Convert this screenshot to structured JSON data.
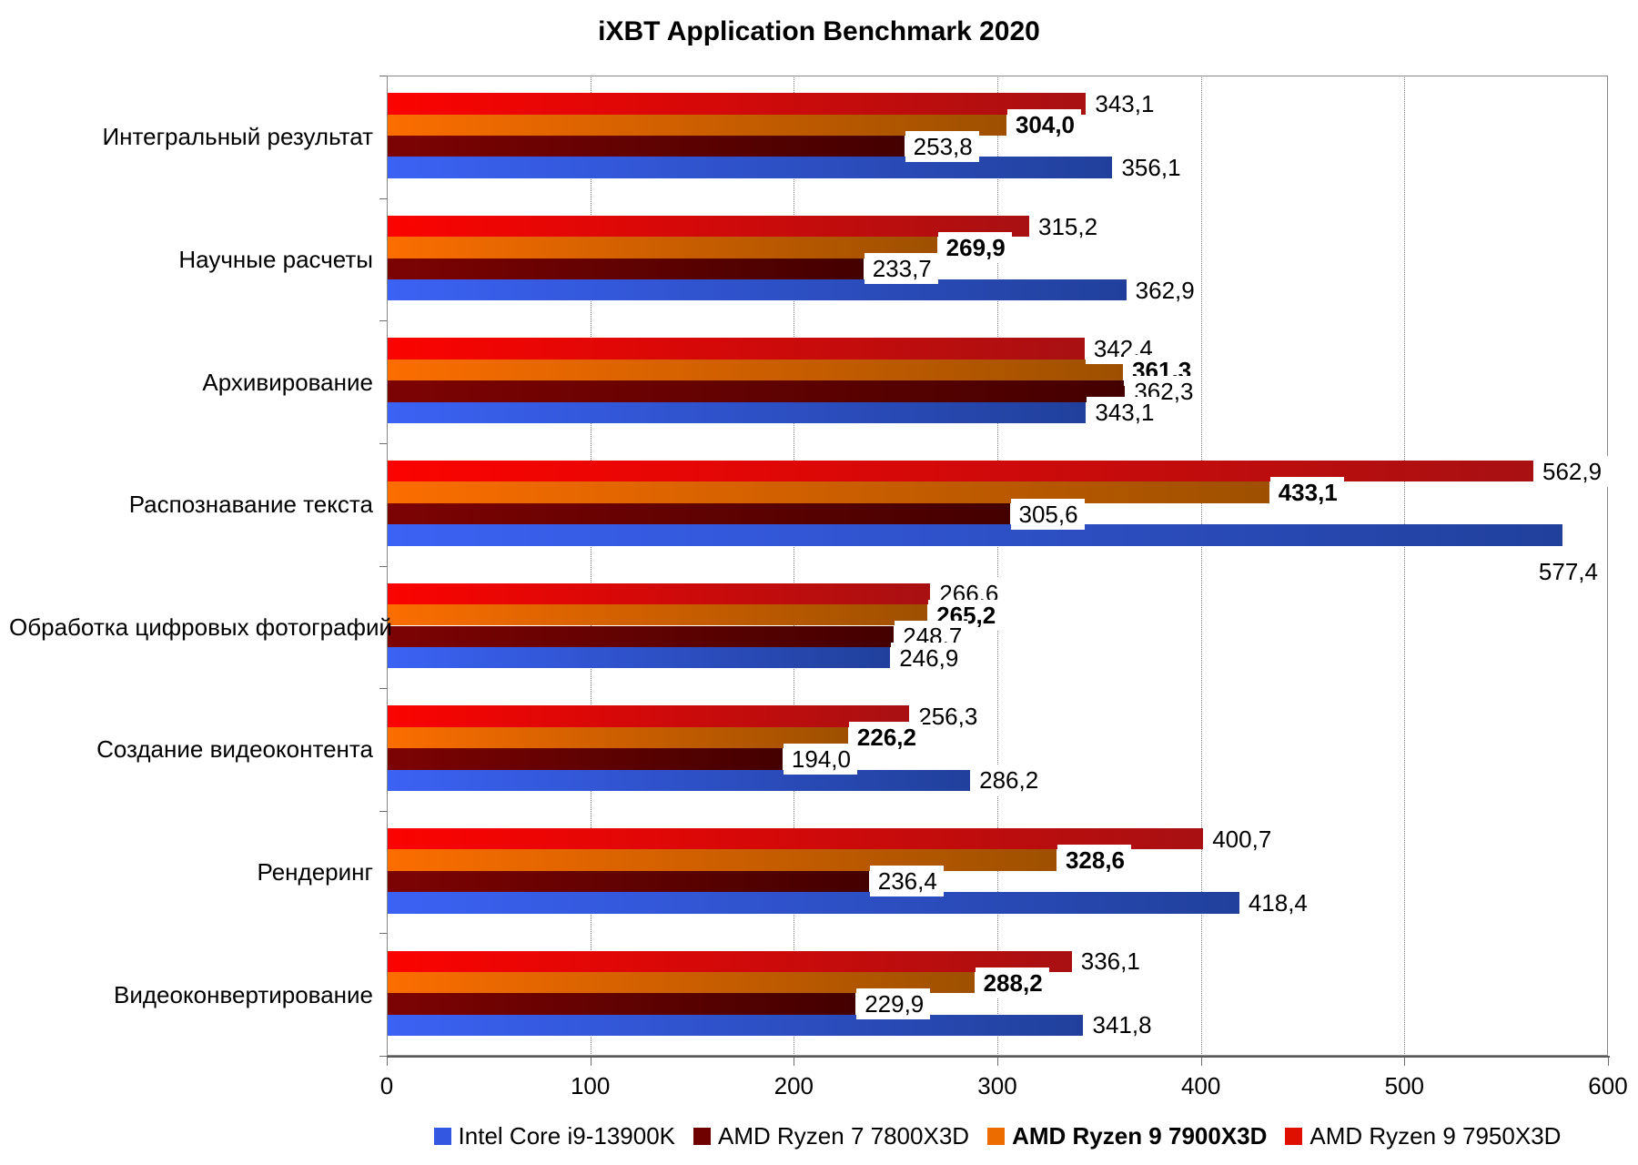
{
  "title": "iXBT Application Benchmark 2020",
  "chart_data": {
    "type": "bar",
    "orientation": "horizontal",
    "title": "iXBT Application Benchmark 2020",
    "xlabel": "",
    "ylabel": "",
    "xlim": [
      0,
      600
    ],
    "x_ticks": [
      "0",
      "100",
      "200",
      "300",
      "400",
      "500",
      "600"
    ],
    "grid": "vertical-dotted",
    "legend_position": "bottom",
    "categories": [
      "Интегральный результат",
      "Научные расчеты",
      "Архивирование",
      "Распознавание текста",
      "Обработка цифровых фотографий",
      "Создание видеоконтента",
      "Рендеринг",
      "Видеоконвертирование"
    ],
    "series_note": "series array is in draw order top-to-bottom within each category group",
    "series": [
      {
        "name": "AMD Ryzen 9 7950X3D",
        "bold_labels": false,
        "color_start": "#FB0300",
        "color_end": "#A81012",
        "legend_color": "#E01000",
        "values": [
          343.1,
          315.2,
          342.4,
          562.9,
          266.6,
          256.3,
          400.7,
          336.1
        ],
        "value_labels": [
          "343,1",
          "315,2",
          "342,4",
          "562,9",
          "266,6",
          "256,3",
          "400,7",
          "336,1"
        ]
      },
      {
        "name": "AMD Ryzen 9 7900X3D",
        "bold_labels": true,
        "color_start": "#FB6D00",
        "color_end": "#9E5000",
        "legend_color": "#ED6C00",
        "values": [
          304.0,
          269.9,
          361.3,
          433.1,
          265.2,
          226.2,
          328.6,
          288.2
        ],
        "value_labels": [
          "304,0",
          "269,9",
          "361,3",
          "433,1",
          "265,2",
          "226,2",
          "328,6",
          "288,2"
        ]
      },
      {
        "name": "AMD Ryzen 7 7800X3D",
        "bold_labels": false,
        "color_start": "#7D0303",
        "color_end": "#440000",
        "legend_color": "#700101",
        "values": [
          253.8,
          233.7,
          362.3,
          305.6,
          248.7,
          194.0,
          236.4,
          229.9
        ],
        "value_labels": [
          "253,8",
          "233,7",
          "362,3",
          "305,6",
          "248,7",
          "194,0",
          "236,4",
          "229,9"
        ]
      },
      {
        "name": "Intel Core i9-13900K",
        "bold_labels": false,
        "color_start": "#3B62F4",
        "color_end": "#21409C",
        "legend_color": "#3357E0",
        "values": [
          356.1,
          362.9,
          343.1,
          577.4,
          246.9,
          286.2,
          418.4,
          341.8
        ],
        "value_labels": [
          "356,1",
          "362,9",
          "343,1",
          "577,4",
          "246,9",
          "286,2",
          "418,4",
          "341,8"
        ],
        "below_label_category_index": 3
      }
    ],
    "legend": [
      {
        "name": "Intel Core i9-13900K",
        "color": "#3357E0",
        "bold": false
      },
      {
        "name": "AMD Ryzen 7 7800X3D",
        "color": "#700101",
        "bold": false
      },
      {
        "name": "AMD Ryzen 9 7900X3D",
        "color": "#ED6C00",
        "bold": true
      },
      {
        "name": "AMD Ryzen 9 7950X3D",
        "color": "#E01000",
        "bold": false
      }
    ]
  }
}
